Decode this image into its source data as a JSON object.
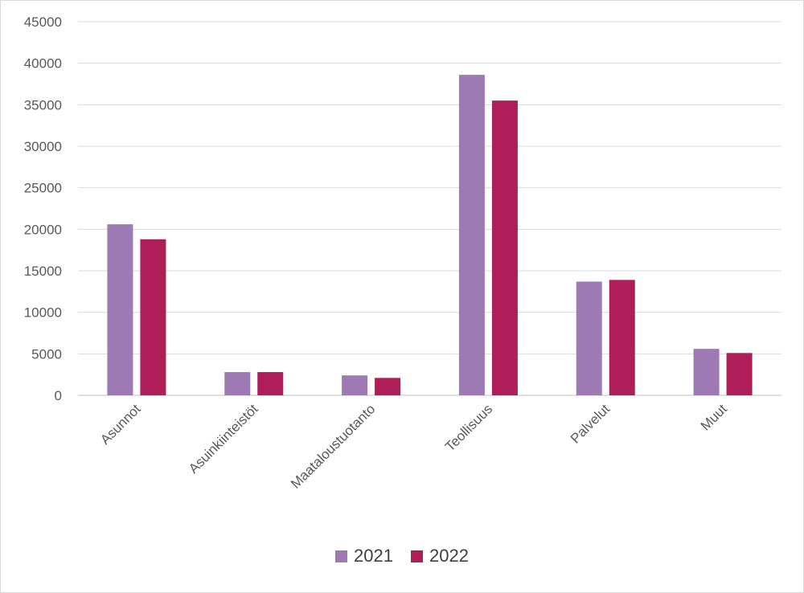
{
  "chart_data": {
    "type": "bar",
    "categories": [
      "Asunnot",
      "Asuinkiinteistöt",
      "Maataloustuotanto",
      "Teollisuus",
      "Palvelut",
      "Muut"
    ],
    "series": [
      {
        "name": "2021",
        "color": "#9e7ab5",
        "values": [
          20600,
          2800,
          2400,
          38600,
          13700,
          5600
        ]
      },
      {
        "name": "2022",
        "color": "#b01e5a",
        "values": [
          18800,
          2800,
          2100,
          35500,
          13900,
          5100
        ]
      }
    ],
    "y_ticks": [
      "0",
      "5000",
      "10000",
      "15000",
      "20000",
      "25000",
      "30000",
      "35000",
      "40000",
      "45000"
    ],
    "ylim": [
      0,
      45000
    ],
    "grid": true,
    "legend_position": "bottom"
  }
}
